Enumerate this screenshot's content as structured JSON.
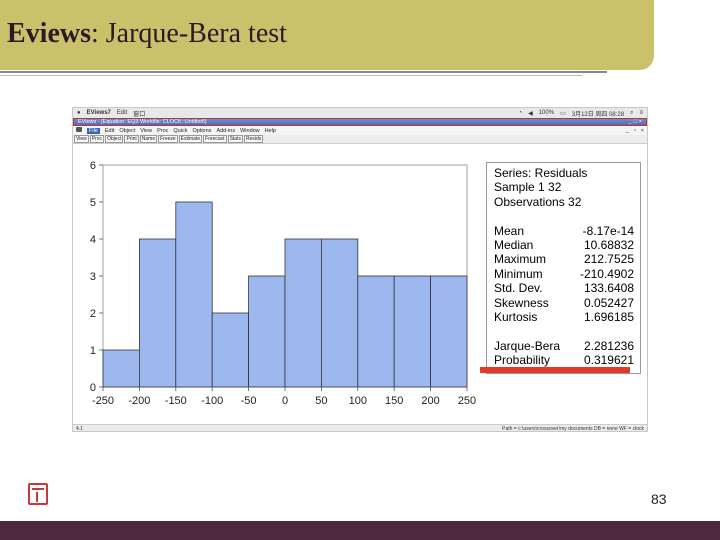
{
  "slide": {
    "title_bold": "Eviews",
    "title_rest": ": Jarque-Bera test",
    "page_number": "83"
  },
  "mac_menu": {
    "app": "EViews7",
    "items": [
      "Edit",
      "窗口"
    ],
    "status": "100%",
    "date": "3月12日 周四 08:28"
  },
  "window": {
    "title": "EViews - [Equation: EQ3   Workfile: CLOCK::Untitled\\]"
  },
  "menu": {
    "items": [
      "File",
      "Edit",
      "Object",
      "View",
      "Proc",
      "Quick",
      "Options",
      "Add-ins",
      "Window",
      "Help"
    ]
  },
  "toolbar": {
    "buttons": [
      "View",
      "Proc",
      "Object",
      "Print",
      "Name",
      "Freeze",
      "Estimate",
      "Forecast",
      "Stats",
      "Resids"
    ]
  },
  "status_bar": {
    "left": "4.1",
    "right": "Path = c:\\users\\crossover\\my documents   DB = none   WF = clock"
  },
  "stats": {
    "series": "Series: Residuals",
    "sample": "Sample 1 32",
    "observations": "Observations 32",
    "rows": [
      {
        "label": "Mean",
        "value": "-8.17e-14"
      },
      {
        "label": "Median",
        "value": "10.68832"
      },
      {
        "label": "Maximum",
        "value": "212.7525"
      },
      {
        "label": "Minimum",
        "value": "-210.4902"
      },
      {
        "label": "Std. Dev.",
        "value": "133.6408"
      },
      {
        "label": "Skewness",
        "value": "0.052427"
      },
      {
        "label": "Kurtosis",
        "value": "1.696185"
      }
    ],
    "jb_label": "Jarque-Bera",
    "jb_value": "2.281236",
    "prob_label": "Probability",
    "prob_value": "0.319621"
  },
  "chart_data": {
    "type": "bar",
    "bin_edges": [
      -250,
      -200,
      -150,
      -100,
      -50,
      0,
      50,
      100,
      150,
      200,
      250
    ],
    "values": [
      1,
      4,
      5,
      2,
      3,
      4,
      4,
      3,
      3,
      3
    ],
    "xlim": [
      -250,
      250
    ],
    "ylim": [
      0,
      6
    ],
    "xticks": [
      "-250",
      "-200",
      "-150",
      "-100",
      "-50",
      "0",
      "50",
      "100",
      "150",
      "200",
      "250"
    ],
    "yticks": [
      "0",
      "1",
      "2",
      "3",
      "4",
      "5",
      "6"
    ],
    "bar_color": "#9db7ef",
    "grid": false
  }
}
